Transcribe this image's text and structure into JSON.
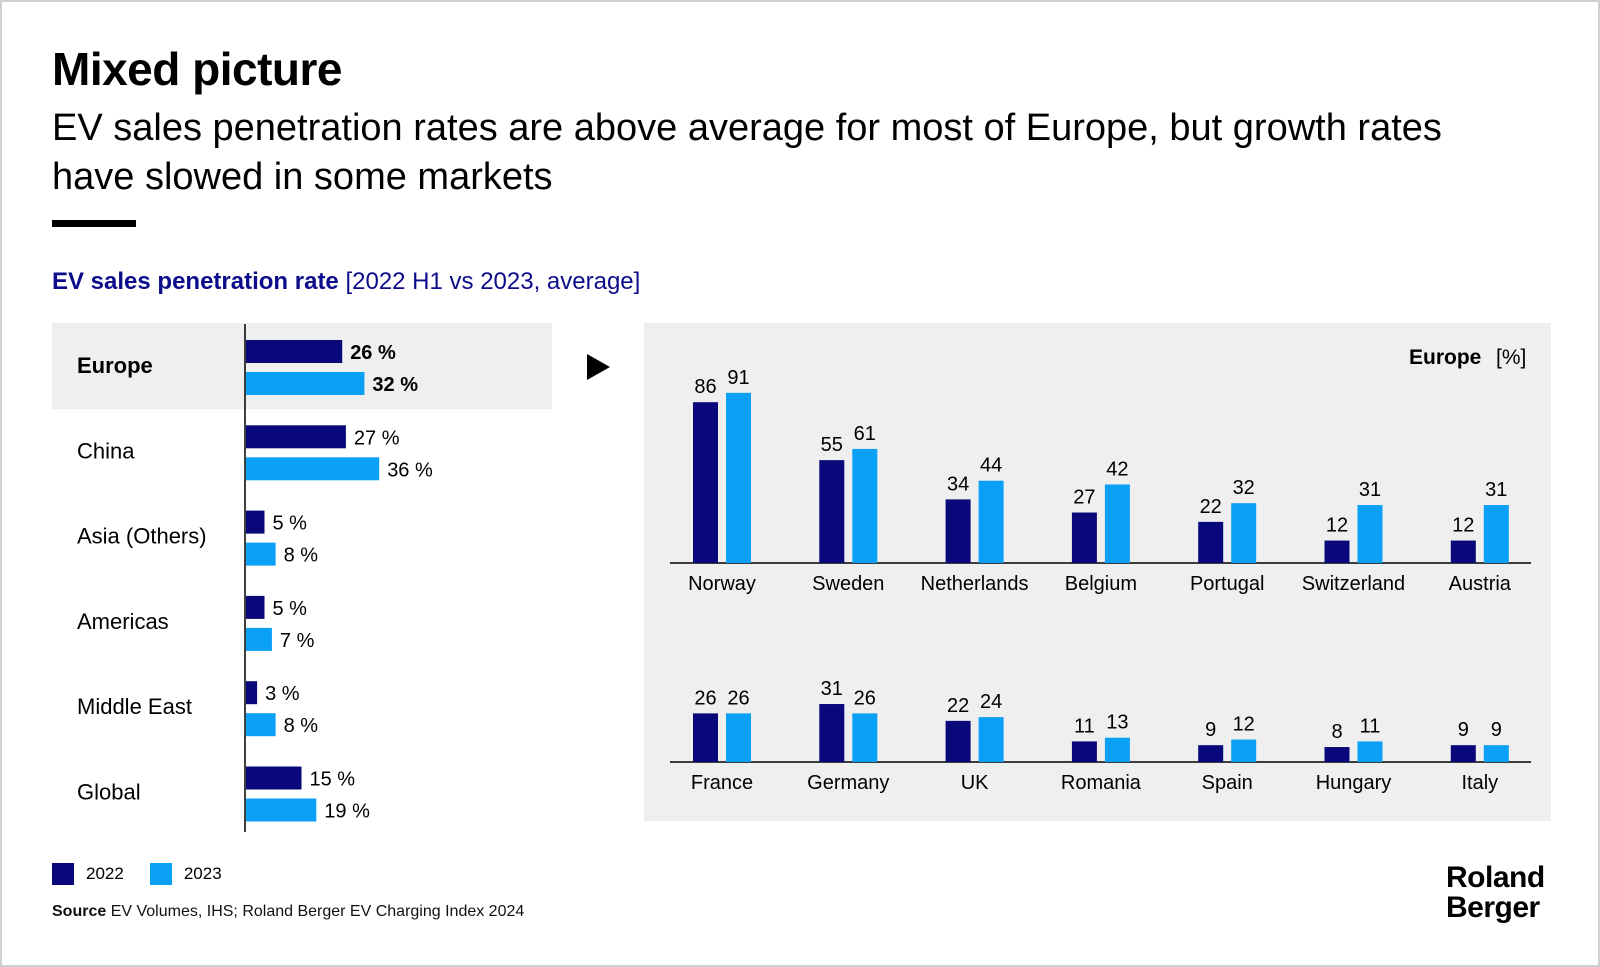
{
  "header": {
    "title": "Mixed picture",
    "subtitle": "EV sales penetration rates are above average for most of Europe, but growth rates have slowed in some markets"
  },
  "chart_heading": {
    "bold": "EV sales penetration rate",
    "bracket": "[2022 H1 vs 2023, average]"
  },
  "colors": {
    "2022": "#09087a",
    "2023": "#0aa0f5",
    "highlight_bg": "#efefef",
    "panel_bg": "#efefef"
  },
  "legend": [
    {
      "label": "2022"
    },
    {
      "label": "2023"
    }
  ],
  "source": {
    "label": "Source",
    "text": "EV Volumes, IHS; Roland Berger EV Charging Index 2024"
  },
  "logo": {
    "line1": "Roland",
    "line2": "Berger"
  },
  "chart_data": [
    {
      "type": "bar",
      "orientation": "horizontal",
      "categories": [
        "Europe",
        "China",
        "Asia (Others)",
        "Americas",
        "Middle East",
        "Global"
      ],
      "series": [
        {
          "name": "2022",
          "values": [
            26,
            27,
            5,
            5,
            3,
            15
          ],
          "labels": [
            "26 %",
            "27 %",
            "5 %",
            "5 %",
            "3 %",
            "15 %"
          ]
        },
        {
          "name": "2023",
          "values": [
            32,
            36,
            8,
            7,
            8,
            19
          ],
          "labels": [
            "32 %",
            "36 %",
            "8 %",
            "7 %",
            "8 %",
            "19 %"
          ]
        }
      ],
      "highlighted": "Europe",
      "xlim": [
        0,
        100
      ]
    },
    {
      "type": "bar",
      "title_bold": "Europe",
      "title_unit": "[%]",
      "rows": [
        {
          "categories": [
            "Norway",
            "Sweden",
            "Netherlands",
            "Belgium",
            "Portugal",
            "Switzerland",
            "Austria"
          ],
          "series": [
            {
              "name": "2022",
              "values": [
                86,
                55,
                34,
                27,
                22,
                12,
                12
              ]
            },
            {
              "name": "2023",
              "values": [
                91,
                61,
                44,
                42,
                32,
                31,
                31
              ]
            }
          ]
        },
        {
          "categories": [
            "France",
            "Germany",
            "UK",
            "Romania",
            "Spain",
            "Hungary",
            "Italy"
          ],
          "series": [
            {
              "name": "2022",
              "values": [
                26,
                31,
                22,
                11,
                9,
                8,
                9
              ]
            },
            {
              "name": "2023",
              "values": [
                26,
                26,
                24,
                13,
                12,
                11,
                9
              ]
            }
          ]
        }
      ],
      "ylim": [
        0,
        100
      ]
    }
  ]
}
